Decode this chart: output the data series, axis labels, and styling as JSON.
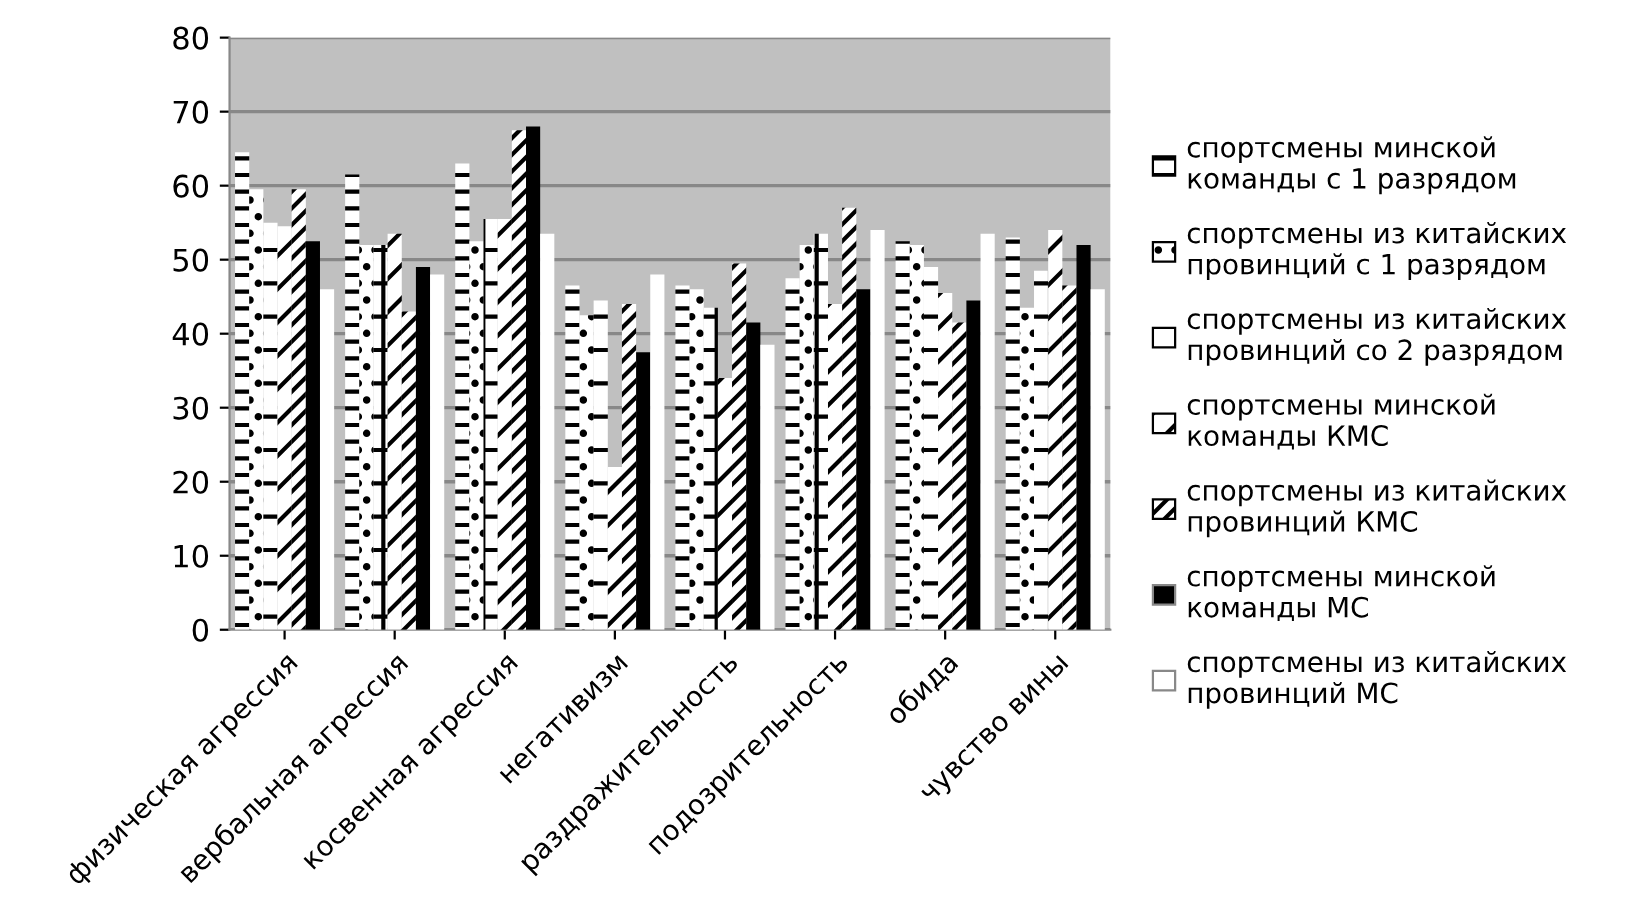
{
  "chart_data": {
    "type": "bar",
    "categories": [
      "физическая агрессия",
      "вербальная агрессия",
      "косвенная агрессия",
      "негативизм",
      "раздражительность",
      "подозрительность",
      "обида",
      "чувство вины"
    ],
    "series": [
      {
        "name": "спортсмены минской команды с 1 разрядом",
        "color": "#ffffff",
        "values": [
          64.5,
          61.5,
          63,
          46.5,
          46.5,
          47.5,
          52.5,
          53
        ]
      },
      {
        "name": "спортсмены из китайских провинций с 1 разрядом",
        "color": "#ffffff",
        "values": [
          59.5,
          52,
          52.5,
          42.5,
          46,
          52,
          52,
          43.5
        ]
      },
      {
        "name": "спортсмены из китайских провинций со 2 разрядом",
        "color": "#ffffff",
        "values": [
          55,
          52,
          55.5,
          44.5,
          43.5,
          53.5,
          49,
          48.5
        ]
      },
      {
        "name": "спортсмены минской команды КМС",
        "color": "#ffffff",
        "values": [
          54.5,
          53.5,
          55.5,
          22,
          34,
          44,
          45.5,
          54
        ]
      },
      {
        "name": "спортсмены из китайских провинций КМС",
        "color": "#ffffff",
        "values": [
          59.5,
          43,
          67.5,
          44,
          49.5,
          57,
          41.5,
          46.5
        ]
      },
      {
        "name": "спортсмены минской команды МС",
        "color": "#000000",
        "values": [
          52.5,
          49,
          68,
          37.5,
          41.5,
          46,
          44.5,
          52
        ]
      },
      {
        "name": "спортсмены из китайских провинций МС",
        "color": "#ffffff",
        "values": [
          46,
          48,
          53.5,
          48,
          38.5,
          54,
          53.5,
          46
        ]
      }
    ],
    "ylim": [
      0,
      80
    ],
    "yticks": [
      0,
      10,
      20,
      30,
      40,
      50,
      60,
      70,
      80
    ],
    "grid": "y",
    "legend": "right"
  }
}
